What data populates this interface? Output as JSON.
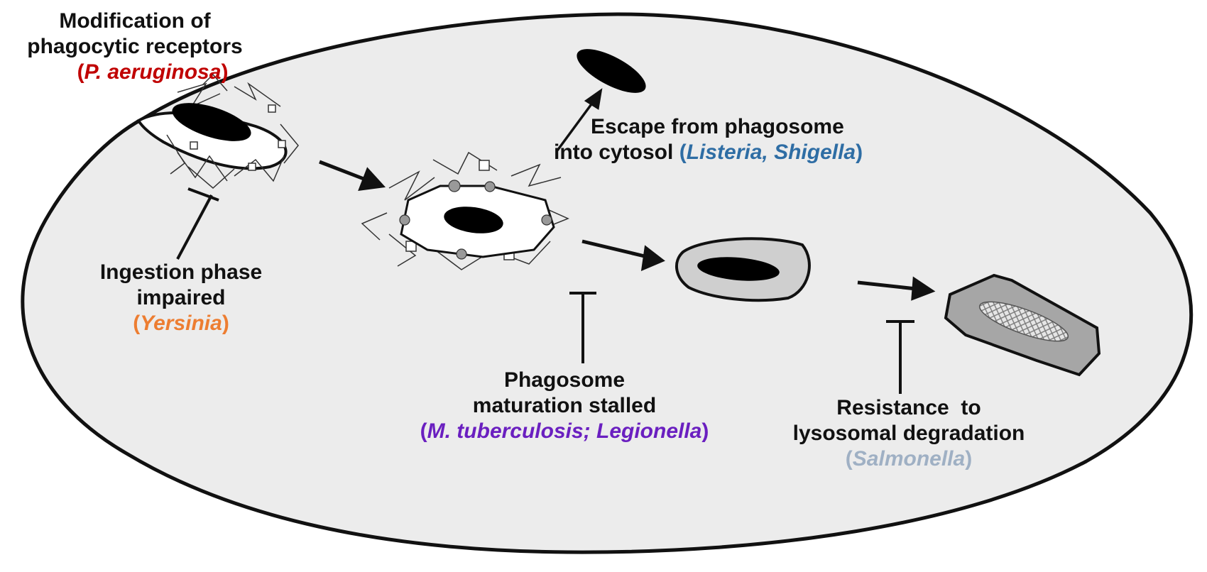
{
  "colors": {
    "text": "#111111",
    "cell_fill": "#ececec",
    "pseudomonas": "#c00000",
    "yersinia": "#ed7d31",
    "listeria_shigella": "#2e6da4",
    "mtb_legionella": "#6a1fc0",
    "salmonella": "#9fb0c4"
  },
  "labels": {
    "receptors": {
      "line1": "Modification of",
      "line2": "phagocytic receptors",
      "open": "(",
      "organism": "P. aeruginosa",
      "close": ")"
    },
    "ingestion": {
      "line1": "Ingestion phase",
      "line2": "impaired",
      "open": "(",
      "organism": "Yersinia",
      "close": ")"
    },
    "escape": {
      "line1": "Escape from phagosome",
      "line2": "into cytosol",
      "open": "(",
      "organism": "Listeria, Shigella",
      "close": ")"
    },
    "maturation": {
      "line1": "Phagosome",
      "line2": "maturation stalled",
      "open": "(",
      "organism": "M. tuberculosis; Legionella",
      "close": ")"
    },
    "resistance": {
      "line1": "Resistance  to",
      "line2": "lysosomal degradation",
      "open": "(",
      "organism": "Salmonella",
      "close": ")"
    }
  }
}
